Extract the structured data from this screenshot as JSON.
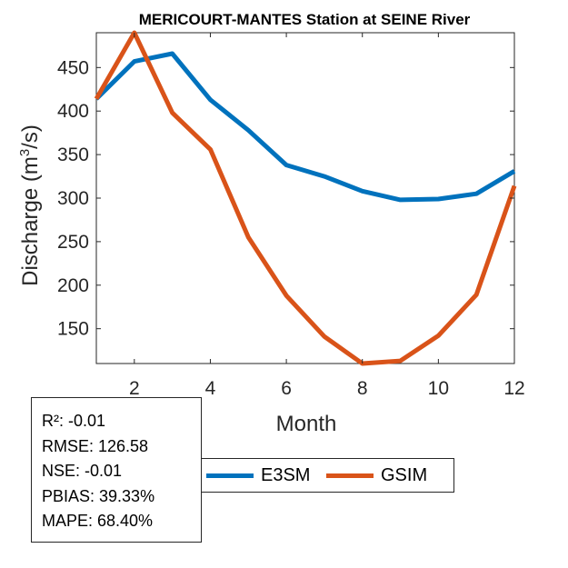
{
  "chart_data": {
    "type": "line",
    "title": "MERICOURT-MANTES  Station at  SEINE  River",
    "xlabel": "Month",
    "ylabel_main": "Discharge (m",
    "ylabel_sup": "3",
    "ylabel_end": "/s)",
    "xlim": [
      1,
      12
    ],
    "ylim": [
      110,
      490
    ],
    "xticks": [
      2,
      4,
      6,
      8,
      10,
      12
    ],
    "yticks": [
      150,
      200,
      250,
      300,
      350,
      400,
      450
    ],
    "x": [
      1,
      2,
      3,
      4,
      5,
      6,
      7,
      8,
      9,
      10,
      11,
      12
    ],
    "series": [
      {
        "name": "E3SM",
        "color": "#0072BD",
        "values": [
          414,
          457,
          466,
          413,
          378,
          338,
          325,
          308,
          298,
          299,
          305,
          331
        ]
      },
      {
        "name": "GSIM",
        "color": "#D95319",
        "values": [
          414,
          490,
          398,
          356,
          255,
          188,
          141,
          110,
          113,
          142,
          189,
          314
        ]
      }
    ],
    "legend": [
      {
        "label": "E3SM",
        "color": "#0072BD"
      },
      {
        "label": "GSIM",
        "color": "#D95319"
      }
    ],
    "stats": [
      "R²: -0.01",
      "RMSE: 126.58",
      "NSE: -0.01",
      "PBIAS: 39.33%",
      "MAPE: 68.40%"
    ]
  }
}
